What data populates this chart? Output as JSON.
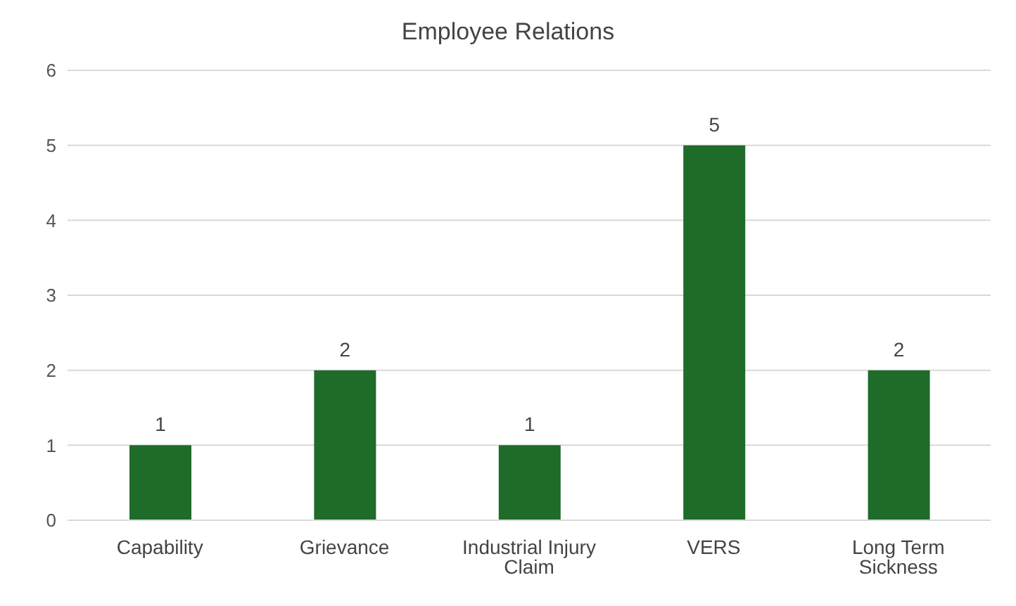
{
  "chart_data": {
    "type": "bar",
    "title": "Employee Relations",
    "categories": [
      "Capability",
      "Grievance",
      "Industrial Injury Claim",
      "VERS",
      "Long Term Sickness"
    ],
    "values": [
      1,
      2,
      1,
      5,
      2
    ],
    "color": "#1e6b2a",
    "ylim": [
      0,
      6
    ],
    "yticks": [
      0,
      1,
      2,
      3,
      4,
      5,
      6
    ],
    "grid": "y",
    "data_labels": true
  }
}
